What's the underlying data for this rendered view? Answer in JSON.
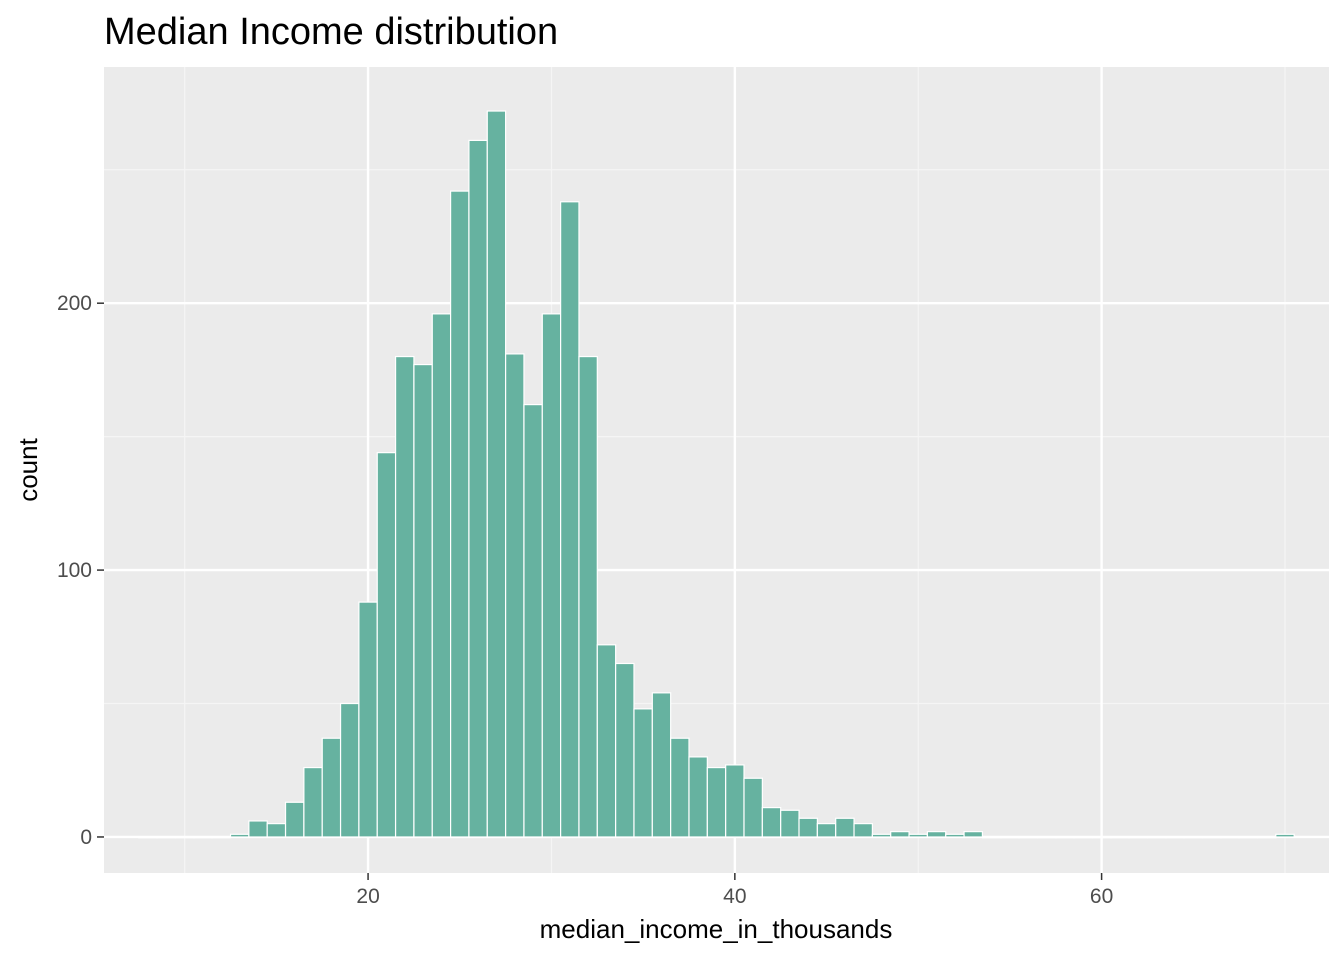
{
  "chart_data": {
    "type": "bar",
    "title": "Median Income distribution",
    "xlabel": "median_income_in_thousands",
    "ylabel": "count",
    "xlim": [
      5.6,
      72.4
    ],
    "ylim": [
      -13.5,
      288.5
    ],
    "x_ticks": [
      20,
      40,
      60
    ],
    "y_ticks": [
      0,
      100,
      200
    ],
    "grid": true,
    "legend": "none",
    "bin_width": 1,
    "x": [
      8,
      9,
      10,
      11,
      12,
      13,
      14,
      15,
      16,
      17,
      18,
      19,
      20,
      21,
      22,
      23,
      24,
      25,
      26,
      27,
      28,
      29,
      30,
      31,
      32,
      33,
      34,
      35,
      36,
      37,
      38,
      39,
      40,
      41,
      42,
      43,
      44,
      45,
      46,
      47,
      48,
      49,
      50,
      51,
      52,
      53,
      54,
      55,
      56,
      57,
      58,
      59,
      60,
      61,
      62,
      63,
      64,
      65,
      66,
      67,
      68,
      69,
      70
    ],
    "values": [
      0,
      0,
      0,
      0,
      0,
      1,
      6,
      5,
      13,
      26,
      37,
      50,
      88,
      144,
      180,
      177,
      196,
      242,
      261,
      272,
      181,
      162,
      196,
      238,
      180,
      72,
      65,
      48,
      54,
      37,
      30,
      26,
      27,
      22,
      11,
      10,
      7,
      5,
      7,
      5,
      1,
      2,
      1,
      2,
      1,
      2,
      0,
      0,
      0,
      0,
      0,
      0,
      0,
      0,
      0,
      0,
      0,
      0,
      0,
      0,
      0,
      0,
      1
    ],
    "colors": {
      "bar_fill": "#66b2a0",
      "bar_stroke": "#ffffff",
      "panel_background": "#ebebeb",
      "grid_major": "#ffffff",
      "grid_minor": "#f5f5f5",
      "tick_text": "#4d4d4d",
      "title_text": "#000000"
    }
  }
}
